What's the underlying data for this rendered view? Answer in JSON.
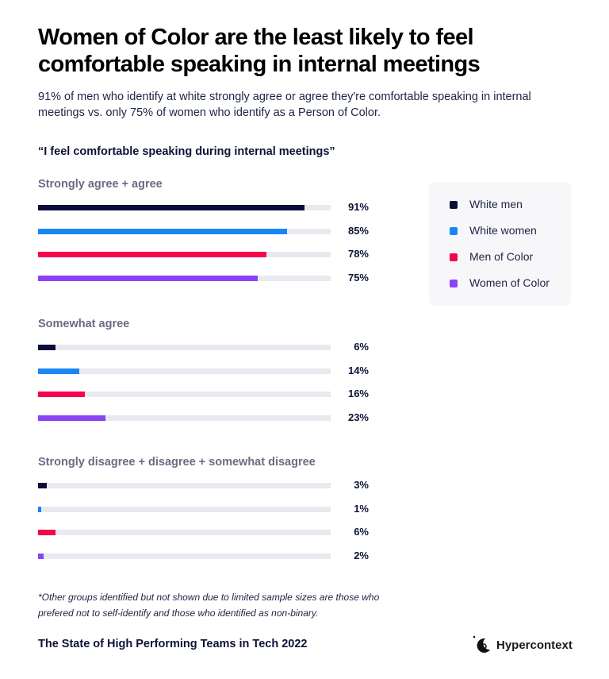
{
  "title": "Women of Color are the least likely to feel comfortable speaking in internal meetings",
  "subtitle": "91% of men who identify at white strongly agree or agree they're comfortable speaking in internal meetings vs. only 75% of women who identify as a Person of Color.",
  "footnote": "*Other groups identified but not shown due to limited sample sizes are those who prefered not to self-identify and those who identified as non-binary.",
  "footer": "The State of High Performing Teams in Tech 2022",
  "brand": {
    "name": "Hypercontext",
    "icon": "moon-logo-icon"
  },
  "chart_data": {
    "type": "bar",
    "orientation": "horizontal",
    "title": "“I feel comfortable speaking during internal meetings”",
    "xlim": [
      0,
      100
    ],
    "unit": "%",
    "legend_position": "right",
    "series": [
      {
        "name": "White men",
        "color": "#0b0e3a"
      },
      {
        "name": "White women",
        "color": "#1a86f5"
      },
      {
        "name": "Men of Color",
        "color": "#f5054b"
      },
      {
        "name": "Women of Color",
        "color": "#8a43f7"
      }
    ],
    "groups": [
      {
        "name": "Strongly agree + agree",
        "values": [
          91,
          85,
          78,
          75
        ],
        "labels": [
          "91%",
          "85%",
          "78%",
          "75%"
        ]
      },
      {
        "name": "Somewhat agree",
        "values": [
          6,
          14,
          16,
          23
        ],
        "labels": [
          "6%",
          "14%",
          "16%",
          "23%"
        ]
      },
      {
        "name": "Strongly disagree + disagree + somewhat disagree",
        "values": [
          3,
          1,
          6,
          2
        ],
        "labels": [
          "3%",
          "1%",
          "6%",
          "2%"
        ]
      }
    ]
  }
}
